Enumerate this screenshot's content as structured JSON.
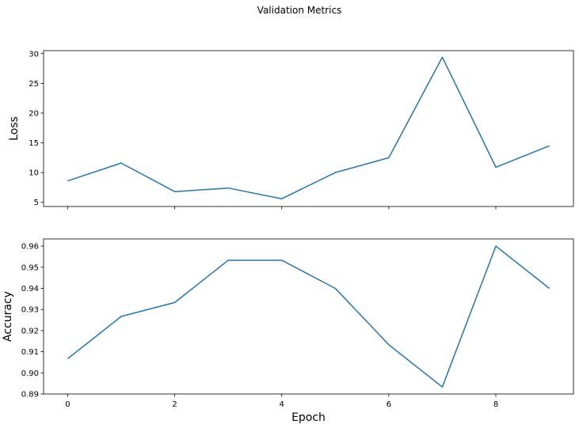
{
  "figure": {
    "title": "Validation Metrics"
  },
  "chart_data": [
    {
      "type": "line",
      "title": "",
      "xlabel": "",
      "ylabel": "Loss",
      "xlim": [
        -0.45,
        9.45
      ],
      "ylim": [
        4.3,
        30.5
      ],
      "xticks": [
        0,
        2,
        4,
        6,
        8
      ],
      "xtick_labels_visible": false,
      "yticks": [
        5,
        10,
        15,
        20,
        25,
        30
      ],
      "ytick_labels": [
        "5",
        "10",
        "15",
        "20",
        "25",
        "30"
      ],
      "grid": false,
      "color": "#1f77b4",
      "series": [
        {
          "x": [
            0,
            1,
            2,
            3,
            4,
            5,
            6,
            7,
            8,
            9
          ],
          "values": [
            8.6,
            11.6,
            6.8,
            7.4,
            5.6,
            10.0,
            12.5,
            29.4,
            10.9,
            14.5
          ]
        }
      ]
    },
    {
      "type": "line",
      "title": "",
      "xlabel": "Epoch",
      "ylabel": "Accuracy",
      "xlim": [
        -0.45,
        9.45
      ],
      "ylim": [
        0.89,
        0.9634
      ],
      "xticks": [
        0,
        2,
        4,
        6,
        8
      ],
      "xtick_labels": [
        "0",
        "2",
        "4",
        "6",
        "8"
      ],
      "xtick_labels_visible": true,
      "yticks": [
        0.89,
        0.9,
        0.91,
        0.92,
        0.93,
        0.94,
        0.95,
        0.96
      ],
      "ytick_labels": [
        "0.89",
        "0.90",
        "0.91",
        "0.92",
        "0.93",
        "0.94",
        "0.95",
        "0.96"
      ],
      "grid": false,
      "color": "#1f77b4",
      "series": [
        {
          "x": [
            0,
            1,
            2,
            3,
            4,
            5,
            6,
            7,
            8,
            9
          ],
          "values": [
            0.9067,
            0.9267,
            0.9333,
            0.9533,
            0.9533,
            0.94,
            0.9133,
            0.8933,
            0.96,
            0.94
          ]
        }
      ]
    }
  ]
}
